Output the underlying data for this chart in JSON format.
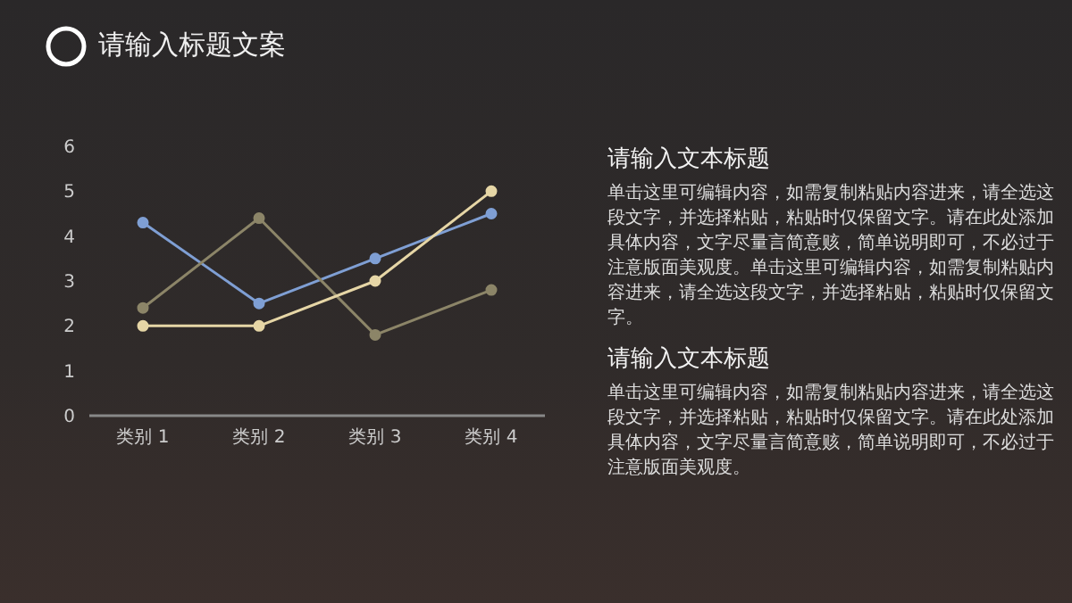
{
  "chart_data": {
    "type": "line",
    "title": "请输入标题文案",
    "categories": [
      "类别 1",
      "类别 2",
      "类别 3",
      "类别 4"
    ],
    "series": [
      {
        "color": "#7f9fd4",
        "values": [
          4.3,
          2.5,
          3.5,
          4.5
        ]
      },
      {
        "color": "#8c8568",
        "values": [
          2.4,
          4.4,
          1.8,
          2.8
        ]
      },
      {
        "color": "#e6d6a6",
        "values": [
          2.0,
          2.0,
          3.0,
          5.0
        ]
      }
    ],
    "ylim": [
      0,
      6
    ],
    "yticks": [
      0,
      1,
      2,
      3,
      4,
      5,
      6
    ],
    "grid": false,
    "legend": false,
    "marker": "circle",
    "line_style": "solid",
    "annotations": [
      "请输入文本标题",
      "单击这里可编辑内容，如需复制粘贴内容进来，请全选这段文字，并选择粘贴，粘贴时仅保留文字。请在此处添加具体内容，文字尽量言简意赅，简单说明即可，不必过于注意版面美观度。单击这里可编辑内容，如需复制粘贴内容进来，请全选这段文字，并选择粘贴，粘贴时仅保留文字。",
      "请输入文本标题",
      "单击这里可编辑内容，如需复制粘贴内容进来，请全选这段文字，并选择粘贴，粘贴时仅保留文字。请在此处添加具体内容，文字尽量言简意赅，简单说明即可，不必过于注意版面美观度。"
    ]
  }
}
